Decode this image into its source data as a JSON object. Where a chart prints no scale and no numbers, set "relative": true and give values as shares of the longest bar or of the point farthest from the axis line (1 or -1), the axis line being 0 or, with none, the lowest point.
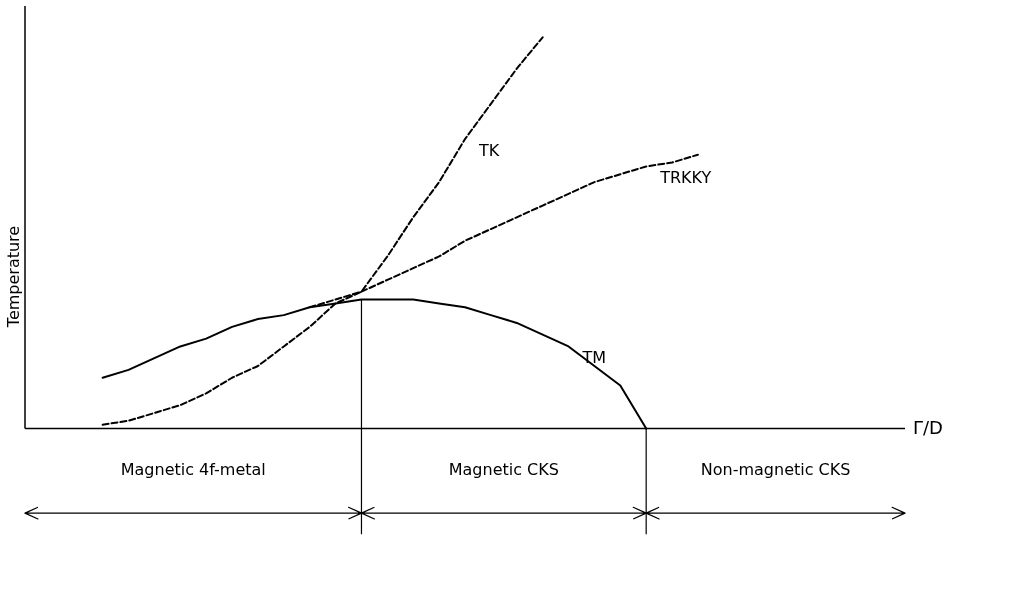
{
  "chart_data": {
    "type": "line",
    "relative": true,
    "ylabel": "Temperature",
    "xlabel": "Γ/D",
    "tick_labels": false,
    "grid": false,
    "legend": false,
    "marker": "none",
    "categories": [
      null,
      null,
      null,
      null,
      null,
      null,
      null,
      null,
      null,
      null,
      null,
      null,
      null,
      null,
      null,
      null,
      null,
      null,
      null,
      null,
      null,
      null,
      null,
      null,
      null,
      null,
      null,
      null,
      null,
      null,
      null,
      null,
      null,
      null,
      null
    ],
    "series": [
      {
        "name": "TK",
        "color": "#000000",
        "line_style": "dashed",
        "values": [
          null,
          null,
          null,
          0.01,
          0.02,
          0.04,
          0.06,
          0.09,
          0.13,
          0.16,
          0.21,
          0.26,
          0.32,
          0.35,
          0.44,
          0.54,
          0.63,
          0.74,
          0.83,
          0.92,
          1.0,
          null,
          null,
          null,
          null,
          null,
          null,
          null,
          null,
          null,
          null,
          null,
          null,
          null,
          null
        ]
      },
      {
        "name": "TRKKY",
        "color": "#000000",
        "line_style": "dashed",
        "values": [
          null,
          null,
          null,
          null,
          null,
          null,
          null,
          null,
          null,
          null,
          null,
          0.31,
          0.33,
          0.35,
          0.38,
          0.41,
          0.44,
          0.48,
          0.51,
          0.54,
          0.57,
          0.6,
          0.63,
          0.65,
          0.67,
          0.68,
          0.7,
          null,
          null,
          null,
          null,
          null,
          null,
          null,
          null
        ]
      },
      {
        "name": "TM",
        "color": "#000000",
        "line_style": "solid",
        "values": [
          null,
          null,
          null,
          0.13,
          0.15,
          0.18,
          0.21,
          0.23,
          0.26,
          0.28,
          0.29,
          0.31,
          0.32,
          0.33,
          0.33,
          0.33,
          0.32,
          0.31,
          0.29,
          0.27,
          0.24,
          0.21,
          0.16,
          0.11,
          0.0,
          null,
          null,
          null,
          null,
          null,
          null,
          null,
          null,
          null,
          null
        ]
      }
    ],
    "annotations": [
      "Magnetic 4f-metal",
      "Magnetic CKS",
      "Non-magnetic CKS"
    ]
  }
}
